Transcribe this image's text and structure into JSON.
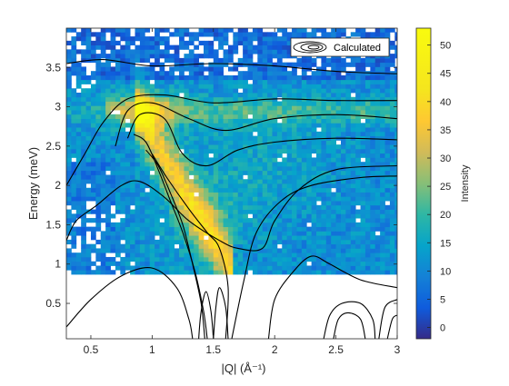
{
  "chart_data": {
    "type": "heatmap",
    "title": "",
    "xlabel": "|Q| (Å⁻¹)",
    "ylabel": "Energy (meV)",
    "xlim": [
      0.3,
      3.0
    ],
    "ylim": [
      0.05,
      4.0
    ],
    "x_ticks": [
      0.5,
      1,
      1.5,
      2,
      2.5,
      3
    ],
    "x_tick_labels": [
      "0.5",
      "1",
      "1.5",
      "2",
      "2.5",
      "3"
    ],
    "y_ticks": [
      0.5,
      1,
      1.5,
      2,
      2.5,
      3,
      3.5
    ],
    "y_tick_labels": [
      "0.5",
      "1",
      "1.5",
      "2",
      "2.5",
      "3",
      "3.5"
    ],
    "data_energy_min": 0.87,
    "colormap": "parula",
    "colorbar": {
      "label": "Intensity",
      "range": [
        -2,
        53
      ],
      "ticks": [
        0,
        5,
        10,
        15,
        20,
        25,
        30,
        35,
        40,
        45,
        50
      ],
      "tick_labels": [
        "0",
        "5",
        "10",
        "15",
        "20",
        "25",
        "30",
        "35",
        "40",
        "45",
        "50"
      ]
    },
    "features": [
      {
        "description": "upper flat mode",
        "energy": 3.0,
        "q_range": [
          0.6,
          3.0
        ]
      },
      {
        "description": "dispersive branch",
        "points": [
          [
            0.85,
            3.0
          ],
          [
            1.0,
            2.4
          ],
          [
            1.15,
            2.0
          ],
          [
            1.35,
            1.6
          ],
          [
            1.5,
            1.2
          ]
        ]
      }
    ],
    "series": [
      {
        "name": "Calculated",
        "kind": "contour",
        "color": "#000000"
      }
    ],
    "legend": {
      "position": "top-right",
      "entries": [
        "Calculated"
      ]
    },
    "grid": false
  }
}
